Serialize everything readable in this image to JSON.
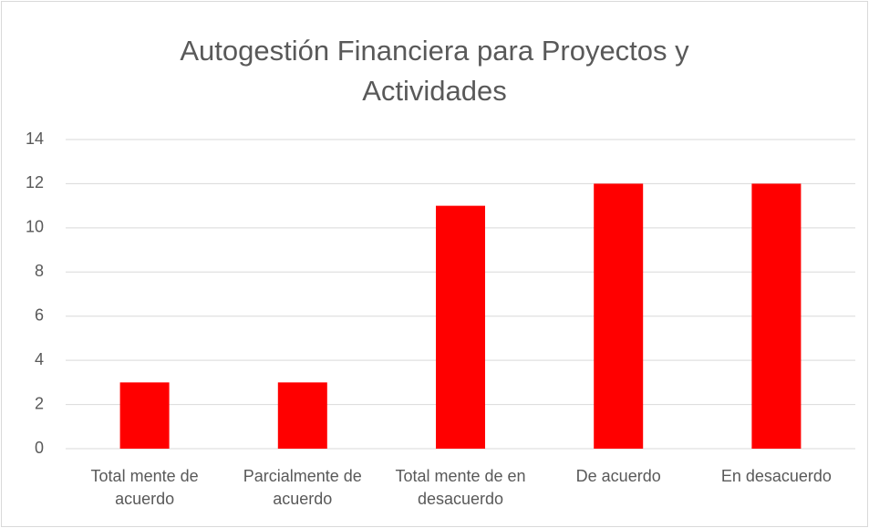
{
  "chart_data": {
    "type": "bar",
    "title": "Autogestión Financiera para Proyectos y Actividades",
    "categories": [
      "Total mente de acuerdo",
      "Parcialmente de acuerdo",
      "Total mente de en desacuerdo",
      "De acuerdo",
      "En desacuerdo"
    ],
    "values": [
      3,
      3,
      11,
      12,
      12
    ],
    "color": "#ff0000",
    "ylim": [
      0,
      14
    ],
    "yticks": [
      0,
      2,
      4,
      6,
      8,
      10,
      12,
      14
    ],
    "grid": true
  }
}
